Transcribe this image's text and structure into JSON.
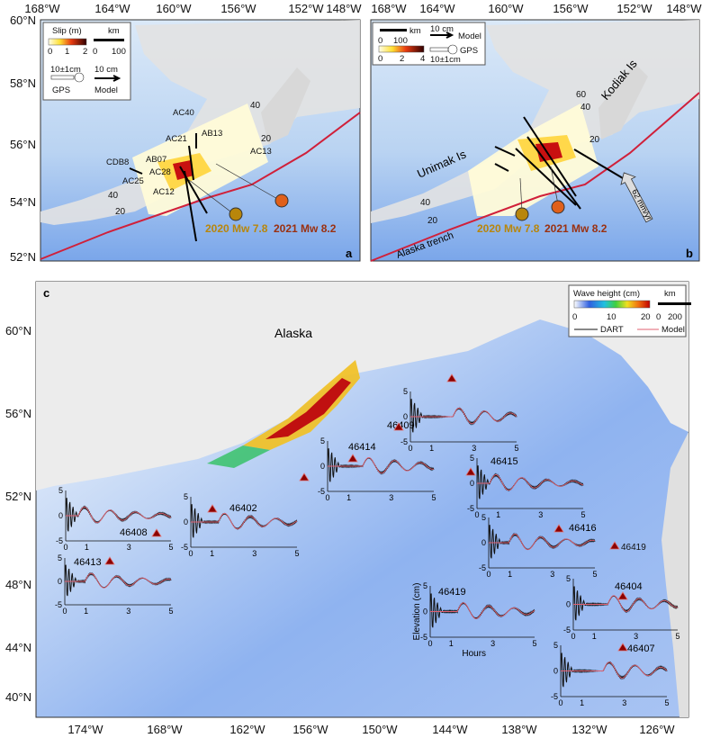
{
  "colors": {
    "trench": "#d0203a",
    "ocean_deep": "#6d9be8",
    "ocean_light": "#d6e6f7",
    "land": "#e4e4e4",
    "event_2020": "#b8860b",
    "event_2021": "#e0601a",
    "dart": "#111111",
    "model": "#e06070"
  },
  "panel_a": {
    "label": "a",
    "lon_ticks": [
      "168°W",
      "164°W",
      "160°W",
      "156°W",
      "152°W",
      "148°W"
    ],
    "lat_ticks": [
      "60°N",
      "58°N",
      "56°N",
      "54°N",
      "52°N"
    ],
    "legend": {
      "slip_title": "Slip (m)",
      "slip_ticks": [
        "0",
        "1",
        "2"
      ],
      "km_title": "km",
      "km_ticks": [
        "0",
        "100"
      ],
      "gps_value": "10±1cm",
      "gps_label": "GPS",
      "model_value": "10 cm",
      "model_label": "Model"
    },
    "stations": [
      "AC40",
      "AB13",
      "AC21",
      "AC13",
      "CDB8",
      "AB07",
      "AC28",
      "AC25",
      "AC12"
    ],
    "contours": [
      "40",
      "20",
      "40",
      "20"
    ],
    "events": [
      "2020 Mw 7.8",
      "2021 Mw 8.2"
    ]
  },
  "panel_b": {
    "label": "b",
    "lon_ticks": [
      "168°W",
      "164°W",
      "160°W",
      "156°W",
      "152°W",
      "148°W"
    ],
    "legend": {
      "km_title": "km",
      "km_ticks": [
        "0",
        "100"
      ],
      "slip_ticks": [
        "0",
        "2",
        "4"
      ],
      "model_value": "10 cm",
      "model_label": "Model",
      "gps_value": "10±1cm",
      "gps_label": "GPS"
    },
    "places": {
      "unimak": "Unimak Is",
      "kodiak": "Kodiak Is",
      "trench": "Alaska trench",
      "rate": "62 mm/yr"
    },
    "contours": [
      "60",
      "40",
      "20",
      "40",
      "20"
    ],
    "events": [
      "2020 Mw 7.8",
      "2021 Mw 8.2"
    ]
  },
  "panel_c": {
    "label": "c",
    "region": "Alaska",
    "lat_ticks": [
      "60°N",
      "56°N",
      "52°N",
      "48°N",
      "44°N",
      "40°N"
    ],
    "lon_ticks": [
      "174°W",
      "168°W",
      "162°W",
      "156°W",
      "150°W",
      "144°W",
      "138°W",
      "132°W",
      "126°W"
    ],
    "legend": {
      "title": "Wave height (cm)",
      "ticks": [
        "0",
        "10",
        "20"
      ],
      "km_title": "km",
      "km_ticks": [
        "0",
        "200"
      ],
      "dart": "DART",
      "model": "Model"
    },
    "inset_y_ticks": [
      "5",
      "0",
      "-5"
    ],
    "inset_x_ticks": [
      "0",
      "1",
      "3",
      "5"
    ],
    "ylabel": "Elevation (cm)",
    "xlabel": "Hours",
    "insets": [
      {
        "station": "46408"
      },
      {
        "station": "46413"
      },
      {
        "station": "46402"
      },
      {
        "station": "46414"
      },
      {
        "station": "46409"
      },
      {
        "station": "46415"
      },
      {
        "station": "46416"
      },
      {
        "station": "46419"
      },
      {
        "station": "46404"
      },
      {
        "station": "46407"
      }
    ],
    "map_station_labels": [
      "46419"
    ]
  }
}
